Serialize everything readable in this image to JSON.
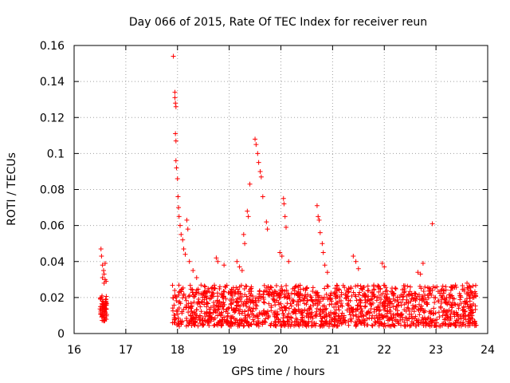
{
  "chart_data": {
    "type": "scatter",
    "title": "Day 066 of 2015, Rate Of TEC Index for receiver reun",
    "xlabel": "GPS time / hours",
    "ylabel": "ROTI / TECUs",
    "xlim": [
      16,
      24
    ],
    "ylim": [
      0,
      0.16
    ],
    "xticks": [
      16,
      17,
      18,
      19,
      20,
      21,
      22,
      23,
      24
    ],
    "yticks": [
      0,
      0.02,
      0.04,
      0.06,
      0.08,
      0.1,
      0.12,
      0.14,
      0.16
    ],
    "ytick_labels": [
      "0",
      "0.02",
      "0.04",
      "0.06",
      "0.08",
      "0.1",
      "0.12",
      "0.14",
      "0.16"
    ],
    "grid": true,
    "marker": "+",
    "color": "#ff0000",
    "series": [
      {
        "name": "ROTI",
        "points": [
          [
            16.52,
            0.047
          ],
          [
            16.53,
            0.043
          ],
          [
            16.55,
            0.038
          ],
          [
            16.57,
            0.035
          ],
          [
            16.58,
            0.033
          ],
          [
            16.55,
            0.031
          ],
          [
            16.6,
            0.03
          ],
          [
            16.62,
            0.029
          ],
          [
            16.58,
            0.028
          ],
          [
            16.6,
            0.039
          ],
          [
            16.53,
            0.02
          ],
          [
            16.55,
            0.018
          ],
          [
            16.57,
            0.016
          ],
          [
            16.58,
            0.014
          ],
          [
            16.6,
            0.012
          ],
          [
            16.52,
            0.011
          ],
          [
            16.55,
            0.01
          ],
          [
            16.57,
            0.009
          ],
          [
            16.6,
            0.008
          ],
          [
            16.62,
            0.017
          ],
          [
            17.92,
            0.154
          ],
          [
            17.95,
            0.134
          ],
          [
            17.95,
            0.131
          ],
          [
            17.96,
            0.128
          ],
          [
            17.97,
            0.126
          ],
          [
            17.96,
            0.111
          ],
          [
            17.97,
            0.107
          ],
          [
            17.97,
            0.096
          ],
          [
            17.98,
            0.092
          ],
          [
            18.0,
            0.086
          ],
          [
            18.01,
            0.076
          ],
          [
            18.02,
            0.07
          ],
          [
            18.03,
            0.065
          ],
          [
            18.05,
            0.06
          ],
          [
            18.07,
            0.055
          ],
          [
            18.1,
            0.052
          ],
          [
            18.12,
            0.047
          ],
          [
            18.15,
            0.044
          ],
          [
            18.18,
            0.063
          ],
          [
            18.2,
            0.058
          ],
          [
            18.23,
            0.04
          ],
          [
            18.3,
            0.035
          ],
          [
            18.37,
            0.031
          ],
          [
            18.75,
            0.042
          ],
          [
            18.78,
            0.04
          ],
          [
            18.9,
            0.038
          ],
          [
            19.15,
            0.04
          ],
          [
            19.2,
            0.037
          ],
          [
            19.25,
            0.035
          ],
          [
            19.28,
            0.055
          ],
          [
            19.3,
            0.05
          ],
          [
            19.35,
            0.068
          ],
          [
            19.37,
            0.065
          ],
          [
            19.4,
            0.083
          ],
          [
            19.5,
            0.108
          ],
          [
            19.52,
            0.105
          ],
          [
            19.55,
            0.1
          ],
          [
            19.57,
            0.095
          ],
          [
            19.6,
            0.09
          ],
          [
            19.62,
            0.087
          ],
          [
            19.65,
            0.076
          ],
          [
            19.72,
            0.062
          ],
          [
            19.74,
            0.058
          ],
          [
            19.98,
            0.045
          ],
          [
            20.02,
            0.043
          ],
          [
            20.05,
            0.075
          ],
          [
            20.06,
            0.072
          ],
          [
            20.08,
            0.065
          ],
          [
            20.1,
            0.059
          ],
          [
            20.15,
            0.04
          ],
          [
            20.7,
            0.071
          ],
          [
            20.72,
            0.065
          ],
          [
            20.74,
            0.063
          ],
          [
            20.76,
            0.056
          ],
          [
            20.8,
            0.05
          ],
          [
            20.82,
            0.045
          ],
          [
            20.85,
            0.038
          ],
          [
            20.9,
            0.034
          ],
          [
            21.4,
            0.043
          ],
          [
            21.45,
            0.04
          ],
          [
            21.5,
            0.036
          ],
          [
            21.96,
            0.039
          ],
          [
            22.0,
            0.037
          ],
          [
            22.65,
            0.034
          ],
          [
            22.7,
            0.033
          ],
          [
            22.75,
            0.039
          ],
          [
            22.93,
            0.061
          ],
          [
            23.6,
            0.028
          ],
          [
            23.65,
            0.026
          ],
          [
            23.7,
            0.022
          ]
        ]
      }
    ]
  }
}
